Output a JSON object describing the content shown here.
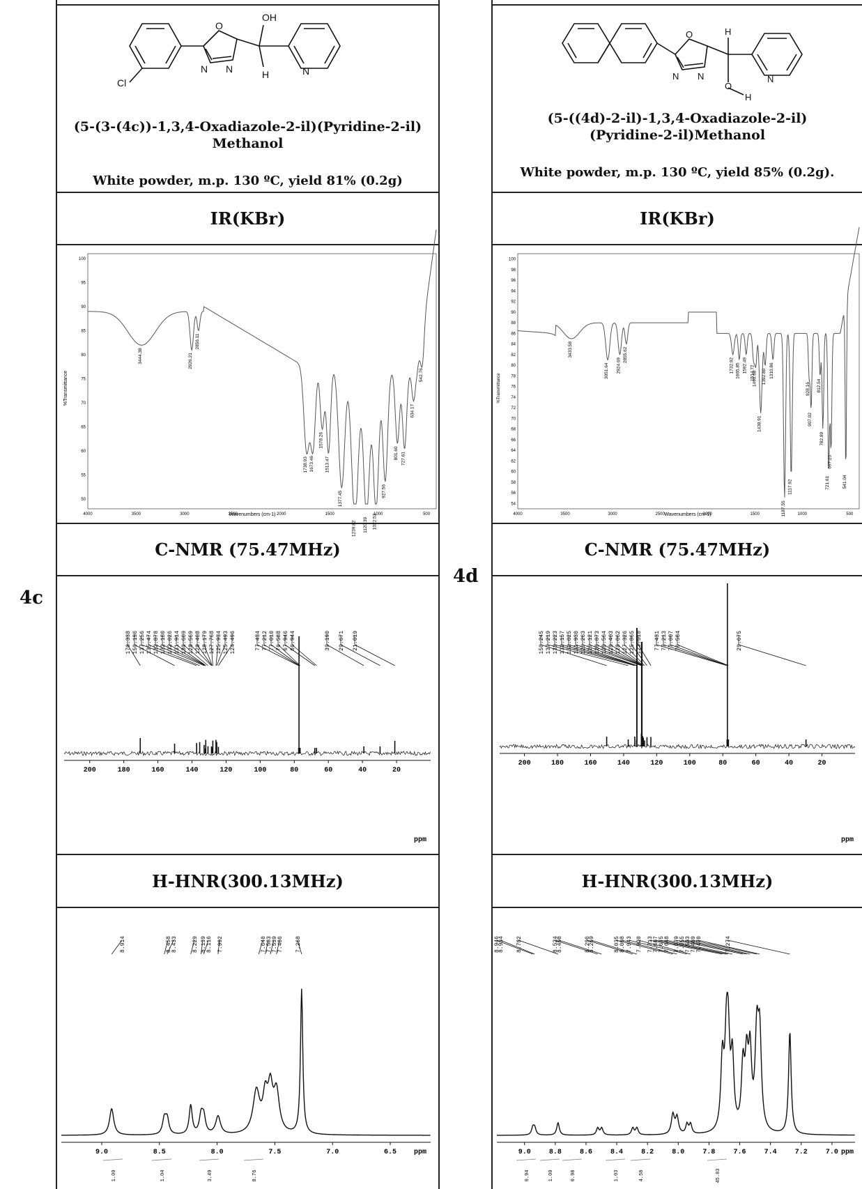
{
  "compounds": [
    {
      "label": "4c",
      "atoms": {
        "oh": "OH",
        "h": "H",
        "cl": "Cl",
        "o": "O",
        "n1": "N",
        "n2": "N",
        "npyr": "N"
      },
      "name_line1": "(5-(3-(4c))-1,3,4-Oxadiazole-2-il)(Pyridine-2-il)",
      "name_line2": "Methanol",
      "desc": "White powder, m.p. 130 ºC, yield 81% (0.2g)",
      "ir_title": "IR(KBr)",
      "ir": {
        "ylabel": "%Transmittance",
        "xlabel": "Wavenumbers (cm-1)",
        "yticks": [
          "100",
          "95",
          "90",
          "85",
          "80",
          "75",
          "70",
          "65",
          "60",
          "55",
          "50"
        ],
        "xticks": [
          "4000",
          "3500",
          "3000",
          "2500",
          "2000",
          "1500",
          "1000",
          "500"
        ],
        "peaks": [
          "3444.38",
          "2926.21",
          "2856.11",
          "1738.93",
          "1673.46",
          "1578.26",
          "1513.47",
          "1377.45",
          "1239.82",
          "1120.39",
          "1022.53",
          "927.56",
          "801.60",
          "727.61",
          "634.17",
          "542.76"
        ]
      },
      "c_title": "C-NMR (75.47MHz)",
      "c_nmr": {
        "unit": "ppm",
        "xticks": [
          "200",
          "180",
          "160",
          "140",
          "120",
          "100",
          "80",
          "60",
          "40",
          "20"
        ],
        "peaks": [
          "170.338",
          "150.196",
          "137.256",
          "135.474",
          "132.878",
          "132.180",
          "132.026",
          "131.914",
          "130.609",
          "128.569",
          "128.408",
          "128.179",
          "127.768",
          "125.934",
          "125.493",
          "124.496",
          "77.434",
          "77.212",
          "77.010",
          "76.588",
          "67.946",
          "66.944",
          "39.190",
          "29.671",
          "21.019"
        ]
      },
      "h_title": "H-HNR(300.13MHz)",
      "h_nmr": {
        "unit": "ppm",
        "xticks": [
          "9.0",
          "8.5",
          "8.0",
          "7.5",
          "7.0",
          "6.5"
        ],
        "peaks": [
          "8.914",
          "8.458",
          "8.433",
          "8.229",
          "8.139",
          "8.116",
          "7.992",
          "7.640",
          "7.583",
          "7.539",
          "7.486",
          "7.268"
        ],
        "integrals": [
          "1.00",
          "1.04",
          "3.49",
          "8.76"
        ]
      }
    },
    {
      "label": "4d",
      "atoms": {
        "h1": "H",
        "h2": "H",
        "o_oh": "O",
        "o": "O",
        "n1": "N",
        "n2": "N",
        "npyr": "N"
      },
      "name_line1": "(5-((4d)-2-il)-1,3,4-Oxadiazole-2-il)",
      "name_line2": "(Pyridine-2-il)Methanol",
      "desc": "White powder, m.p. 130 ºC, yield 85% (0.2g).",
      "ir_title": "IR(KBr)",
      "ir": {
        "ylabel": "%Transmittance",
        "xlabel": "Wavenumbers (cm-1)",
        "yticks": [
          "100",
          "98",
          "96",
          "94",
          "92",
          "90",
          "88",
          "86",
          "84",
          "82",
          "80",
          "78",
          "76",
          "74",
          "72",
          "70",
          "68",
          "66",
          "64",
          "62",
          "60",
          "58",
          "56",
          "54"
        ],
        "xticks": [
          "4000",
          "3500",
          "3000",
          "2500",
          "2000",
          "1500",
          "1000",
          "500"
        ],
        "peaks": [
          "3433.58",
          "3051.64",
          "2924.69",
          "2855.62",
          "1732.92",
          "1665.85",
          "1592.49",
          "1514.72",
          "1490.68",
          "1392.80",
          "1310.86",
          "1438.91",
          "1187.55",
          "1117.92",
          "907.02",
          "928.16",
          "812.54",
          "782.89",
          "721.61",
          "697.25",
          "541.04"
        ]
      },
      "c_title": "C-NMR (75.47MHz)",
      "c_nmr": {
        "unit": "ppm",
        "xticks": [
          "200",
          "180",
          "160",
          "140",
          "120",
          "100",
          "80",
          "60",
          "40",
          "20"
        ],
        "peaks": [
          "150.245",
          "137.219",
          "133.223",
          "132.157",
          "132.025",
          "131.930",
          "129.263",
          "129.121",
          "128.873",
          "128.564",
          "128.403",
          "128.062",
          "127.326",
          "125.865",
          "123.510",
          "77.431",
          "77.213",
          "77.007",
          "76.584",
          "29.675"
        ]
      },
      "h_title": "H-HNR(300.13MHz)",
      "h_nmr": {
        "unit": "ppm",
        "xticks": [
          "9.0",
          "8.8",
          "8.6",
          "8.4",
          "8.2",
          "8.0",
          "7.8",
          "7.6",
          "7.4",
          "7.2",
          "7.0"
        ],
        "peaks": [
          "8.946",
          "8.934",
          "8.782",
          "8.524",
          "8.498",
          "8.296",
          "8.269",
          "8.035",
          "8.008",
          "7.943",
          "7.920",
          "7.713",
          "7.687",
          "7.675",
          "7.648",
          "7.579",
          "7.555",
          "7.533",
          "7.489",
          "7.470",
          "7.274"
        ],
        "integrals": [
          "0.94",
          "1.00",
          "0.98",
          "1.03",
          "4.58",
          "45.83"
        ]
      }
    }
  ]
}
